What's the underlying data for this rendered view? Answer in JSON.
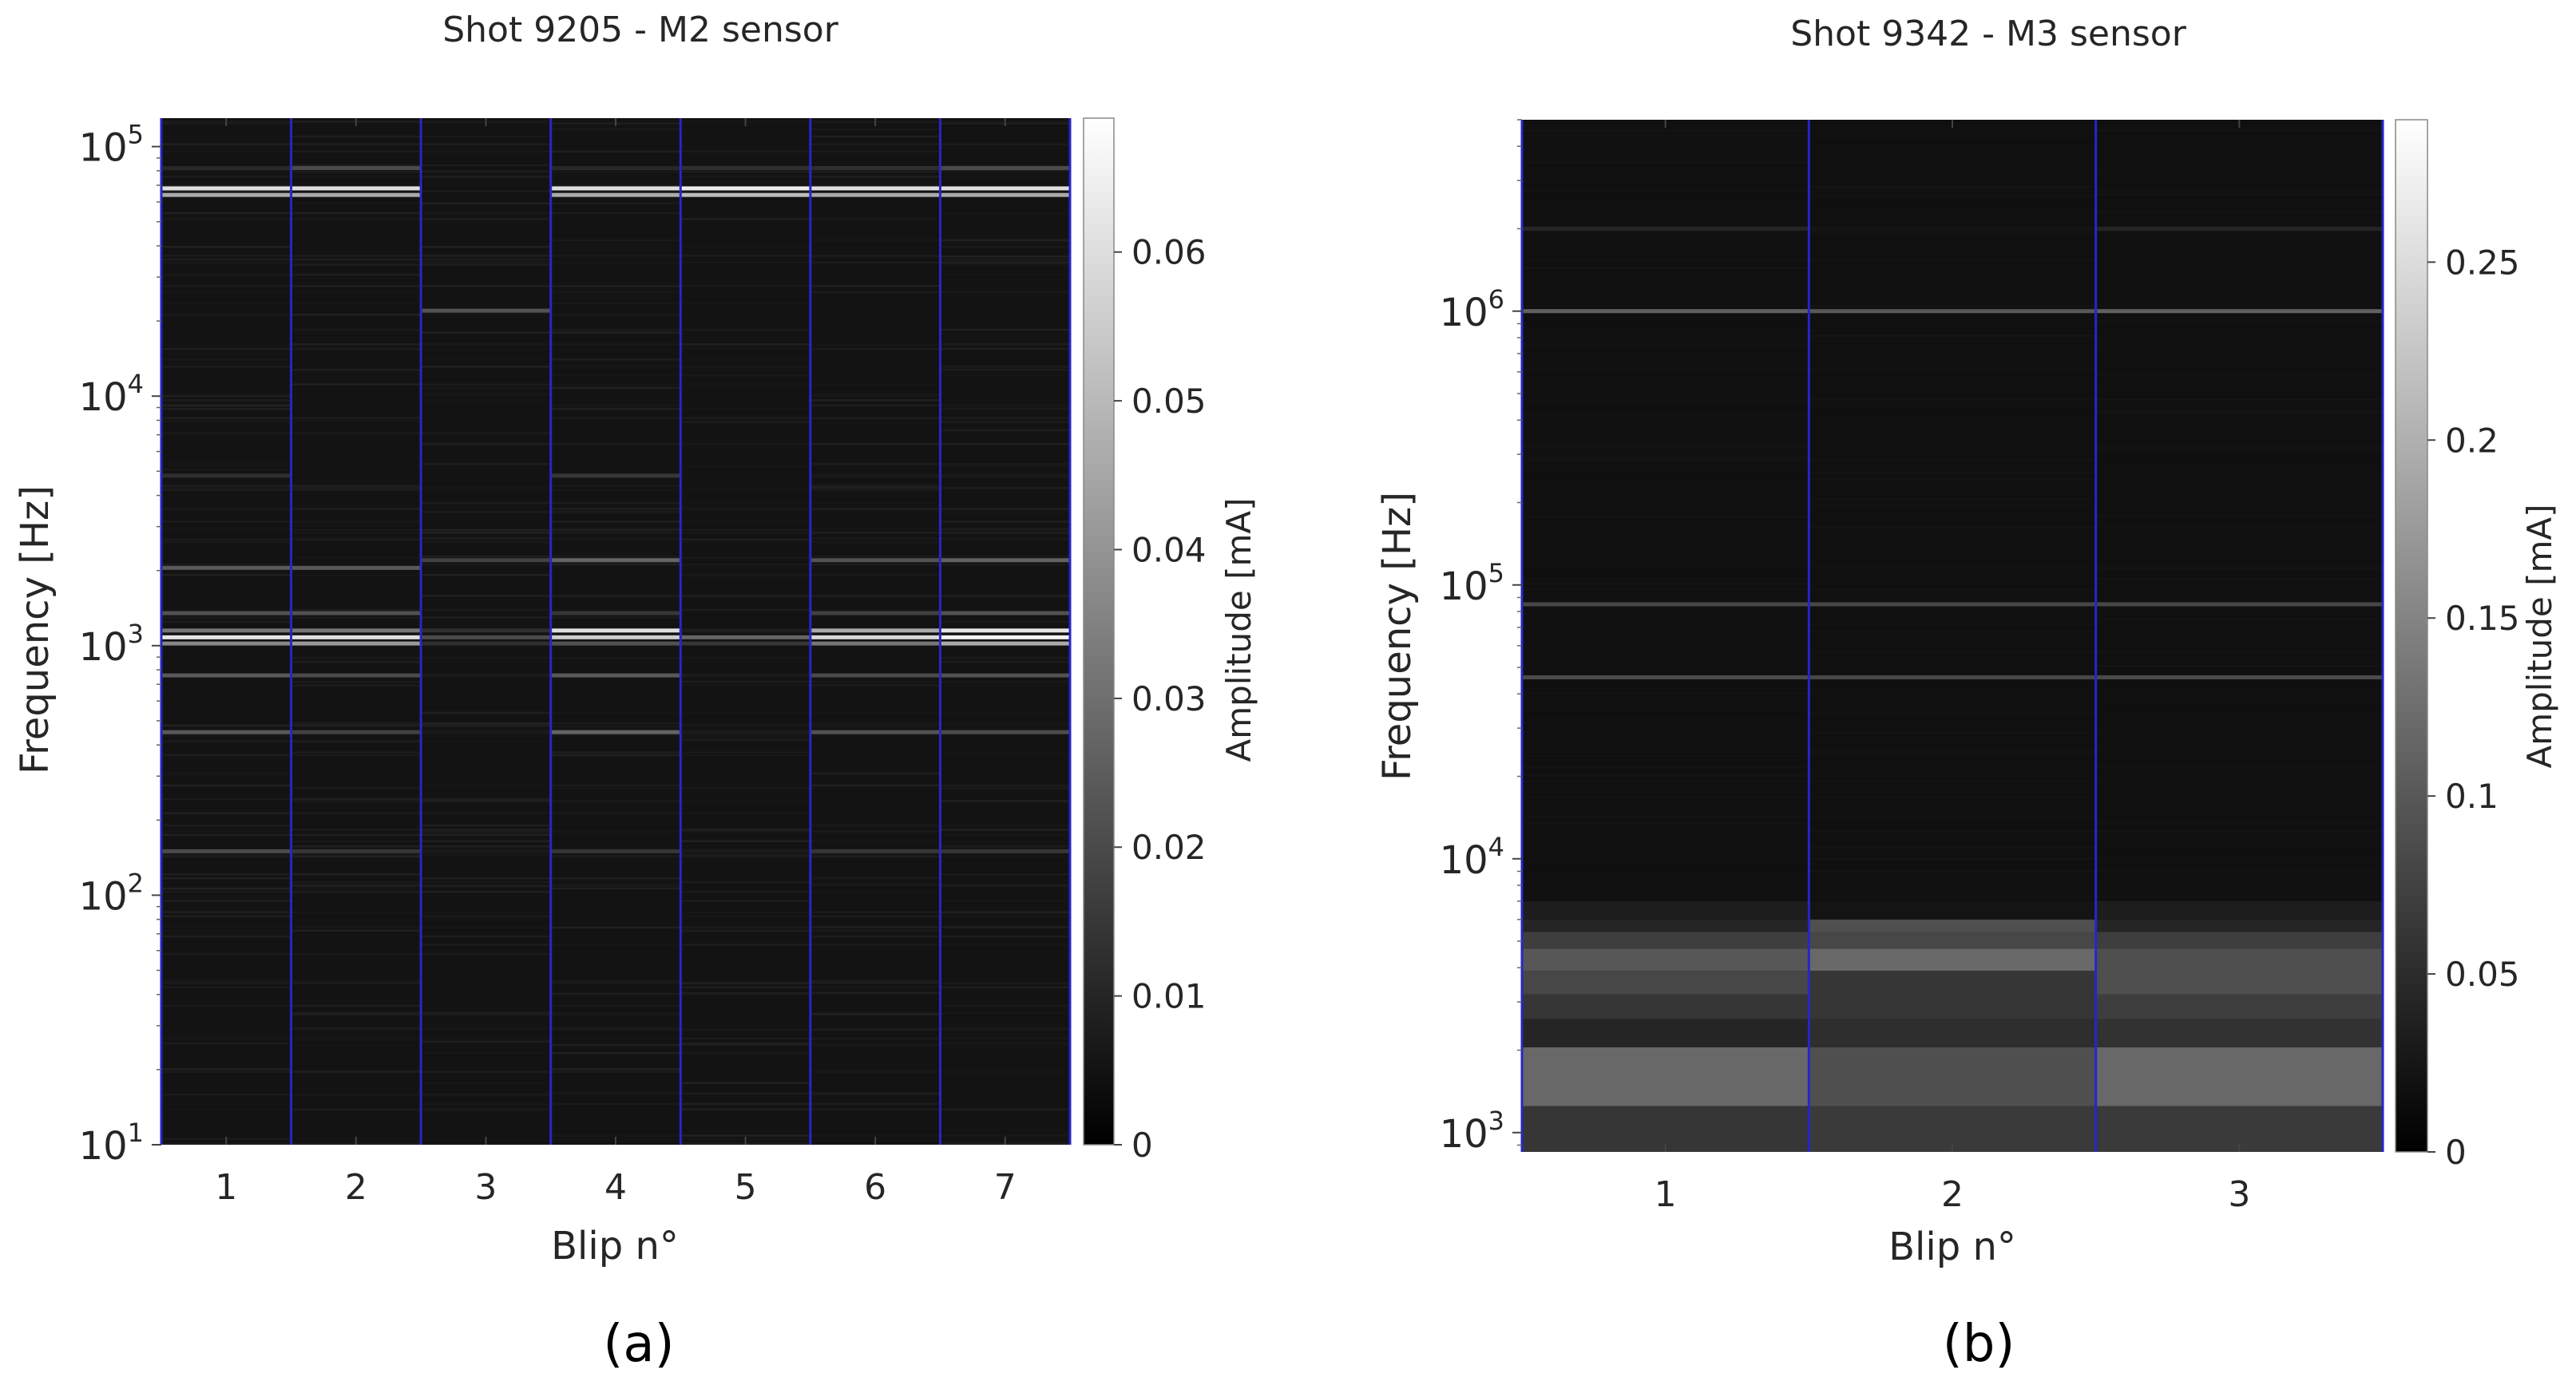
{
  "chart_data": [
    {
      "panel": "(a)",
      "type": "heatmap",
      "title": "Shot 9205 - M2 sensor",
      "xlabel": "Blip n°",
      "ylabel": "Frequency [Hz]",
      "x": [
        1,
        2,
        3,
        4,
        5,
        6,
        7
      ],
      "xlim": [
        0.5,
        7.5
      ],
      "yscale": "log",
      "ylim": [
        10,
        130000
      ],
      "yticks": [
        10,
        100,
        1000,
        10000,
        100000
      ],
      "ytick_labels": [
        {
          "base": "10",
          "exp": "1"
        },
        {
          "base": "10",
          "exp": "2"
        },
        {
          "base": "10",
          "exp": "3"
        },
        {
          "base": "10",
          "exp": "4"
        },
        {
          "base": "10",
          "exp": "5"
        }
      ],
      "colormap": "gray",
      "colorbar": {
        "label": "Amplitude [mA]",
        "range": [
          0,
          0.069
        ],
        "ticks": [
          0,
          0.01,
          0.02,
          0.03,
          0.04,
          0.05,
          0.06
        ],
        "tick_labels": [
          "0",
          "0.01",
          "0.02",
          "0.03",
          "0.04",
          "0.05",
          "0.06"
        ]
      },
      "background_level": 0.002,
      "lines": [
        {
          "freq": 68000,
          "values": [
            0.06,
            0.06,
            0.002,
            0.06,
            0.064,
            0.06,
            0.06
          ]
        },
        {
          "freq": 64000,
          "values": [
            0.045,
            0.045,
            0.002,
            0.045,
            0.05,
            0.045,
            0.045
          ]
        },
        {
          "freq": 82000,
          "values": [
            0.008,
            0.018,
            0.002,
            0.008,
            0.01,
            0.01,
            0.018
          ]
        },
        {
          "freq": 22000,
          "values": [
            0.002,
            0.002,
            0.02,
            0.002,
            0.002,
            0.002,
            0.002
          ]
        },
        {
          "freq": 4800,
          "values": [
            0.01,
            0.002,
            0.002,
            0.012,
            0.002,
            0.004,
            0.004
          ]
        },
        {
          "freq": 2200,
          "values": [
            0.002,
            0.002,
            0.015,
            0.025,
            0.002,
            0.02,
            0.024
          ]
        },
        {
          "freq": 2050,
          "values": [
            0.022,
            0.022,
            0.002,
            0.002,
            0.002,
            0.002,
            0.002
          ]
        },
        {
          "freq": 1350,
          "values": [
            0.02,
            0.02,
            0.002,
            0.012,
            0.002,
            0.015,
            0.02
          ]
        },
        {
          "freq": 1150,
          "values": [
            0.03,
            0.03,
            0.01,
            0.06,
            0.005,
            0.045,
            0.062
          ]
        },
        {
          "freq": 1080,
          "values": [
            0.062,
            0.06,
            0.018,
            0.055,
            0.025,
            0.058,
            0.066
          ]
        },
        {
          "freq": 1020,
          "values": [
            0.035,
            0.04,
            0.01,
            0.02,
            0.012,
            0.03,
            0.045
          ]
        },
        {
          "freq": 760,
          "values": [
            0.022,
            0.018,
            0.004,
            0.022,
            0.004,
            0.018,
            0.02
          ]
        },
        {
          "freq": 450,
          "values": [
            0.022,
            0.015,
            0.004,
            0.025,
            0.004,
            0.02,
            0.018
          ]
        },
        {
          "freq": 150,
          "values": [
            0.018,
            0.012,
            0.004,
            0.012,
            0.004,
            0.012,
            0.012
          ]
        }
      ],
      "noise_level": 0.006
    },
    {
      "panel": "(b)",
      "type": "heatmap",
      "title": "Shot 9342 - M3 sensor",
      "xlabel": "Blip n°",
      "ylabel": "Frequency [Hz]",
      "x": [
        1,
        2,
        3
      ],
      "xlim": [
        0.5,
        3.5
      ],
      "yscale": "log",
      "ylim": [
        850,
        5000000
      ],
      "yticks": [
        1000,
        10000,
        100000,
        1000000
      ],
      "ytick_labels": [
        {
          "base": "10",
          "exp": "3"
        },
        {
          "base": "10",
          "exp": "4"
        },
        {
          "base": "10",
          "exp": "5"
        },
        {
          "base": "10",
          "exp": "6"
        }
      ],
      "colormap": "gray",
      "colorbar": {
        "label": "Amplitude [mA]",
        "range": [
          0,
          0.29
        ],
        "ticks": [
          0,
          0.05,
          0.1,
          0.15,
          0.2,
          0.25
        ],
        "tick_labels": [
          "0",
          "0.05",
          "0.1",
          "0.15",
          "0.2",
          "0.25"
        ]
      },
      "background_level": 0.005,
      "lines": [
        {
          "freq": 2000000,
          "values": [
            0.03,
            0.01,
            0.03
          ]
        },
        {
          "freq": 1000000,
          "values": [
            0.1,
            0.09,
            0.1
          ]
        },
        {
          "freq": 85000,
          "values": [
            0.07,
            0.07,
            0.07
          ]
        },
        {
          "freq": 46000,
          "values": [
            0.075,
            0.07,
            0.075
          ]
        }
      ],
      "bands": [
        {
          "f1": 850,
          "f2": 1250,
          "values": [
            0.05,
            0.055,
            0.055
          ]
        },
        {
          "f1": 1250,
          "f2": 2050,
          "values": [
            0.11,
            0.08,
            0.11
          ]
        },
        {
          "f1": 2050,
          "f2": 2600,
          "values": [
            0.03,
            0.04,
            0.045
          ]
        },
        {
          "f1": 2600,
          "f2": 3200,
          "values": [
            0.05,
            0.05,
            0.06
          ]
        },
        {
          "f1": 3200,
          "f2": 3900,
          "values": [
            0.07,
            0.05,
            0.08
          ]
        },
        {
          "f1": 3900,
          "f2": 4700,
          "values": [
            0.09,
            0.11,
            0.08
          ]
        },
        {
          "f1": 4700,
          "f2": 5400,
          "values": [
            0.06,
            0.07,
            0.06
          ]
        },
        {
          "f1": 5400,
          "f2": 6000,
          "values": [
            0.03,
            0.08,
            0.03
          ]
        },
        {
          "f1": 6000,
          "f2": 7000,
          "values": [
            0.02,
            0.01,
            0.02
          ]
        }
      ],
      "noise_level": 0.01
    }
  ],
  "captions": [
    "(a)",
    "(b)"
  ],
  "colors": {
    "separator": "#2626c8",
    "background": "#ffffff",
    "text": "#262626",
    "axes": "#000000"
  }
}
